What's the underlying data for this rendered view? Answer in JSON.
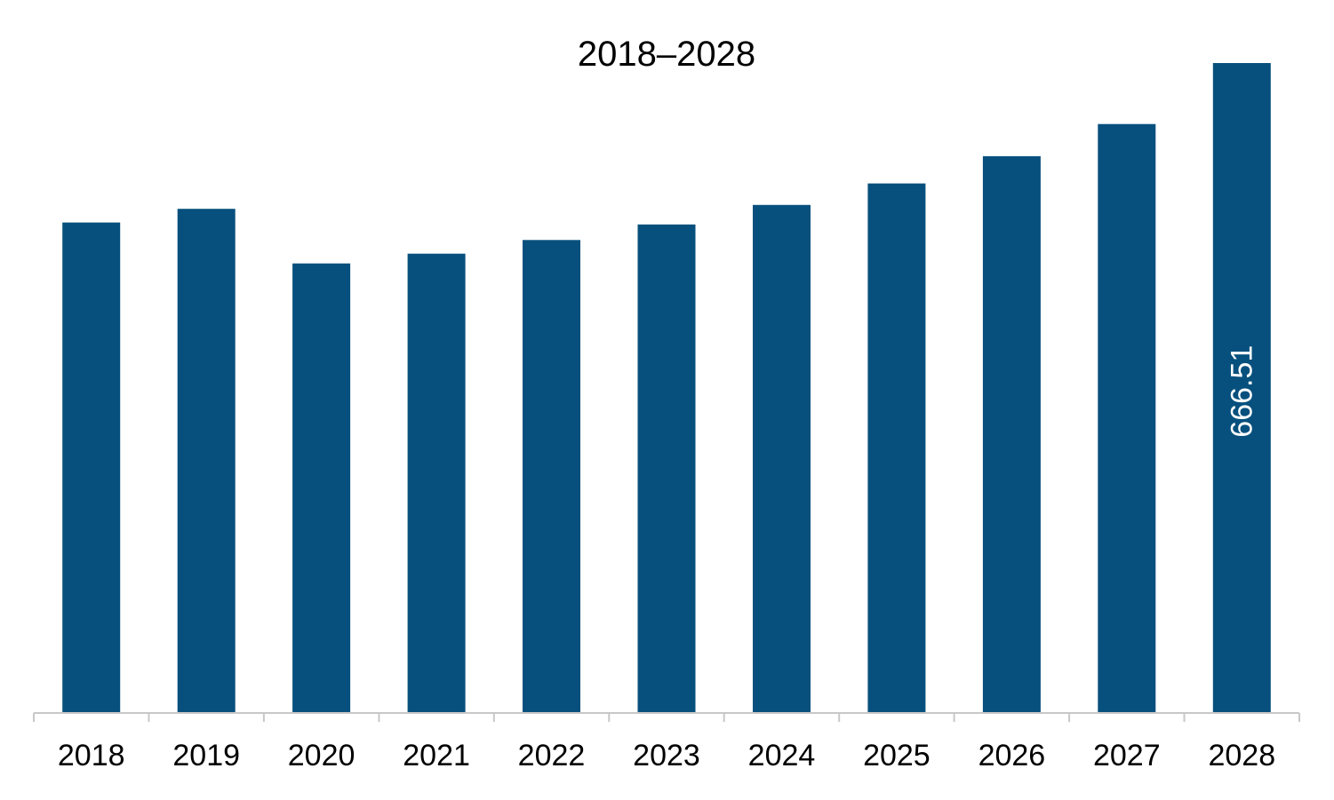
{
  "chart_data": {
    "type": "bar",
    "title": "2018–2028",
    "xlabel": "",
    "ylabel": "",
    "categories": [
      "2018",
      "2019",
      "2020",
      "2021",
      "2022",
      "2023",
      "2024",
      "2025",
      "2026",
      "2027",
      "2028"
    ],
    "values": [
      503,
      517,
      461,
      471,
      485,
      501,
      521,
      543,
      571,
      604,
      666.51
    ],
    "data_labels": [
      "",
      "",
      "",
      "",
      "",
      "",
      "",
      "",
      "",
      "",
      "666.51"
    ],
    "ylim": [
      0,
      700
    ],
    "grid": false,
    "legend": "none",
    "bar_color": "#07507d",
    "axis_color": "#c8c8c8"
  }
}
